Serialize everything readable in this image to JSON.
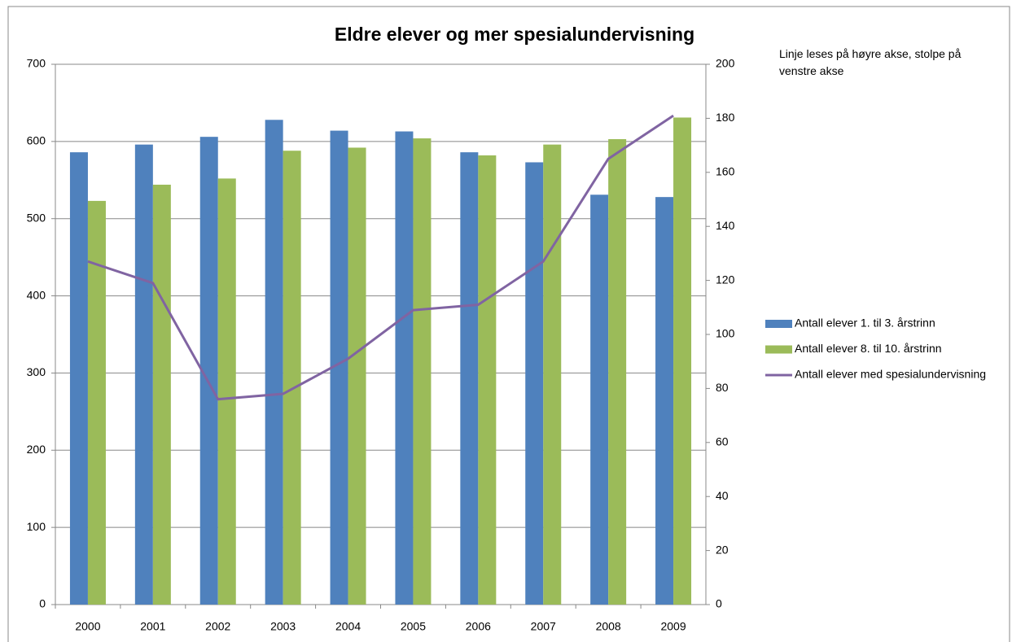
{
  "chart_data": {
    "type": "bar",
    "title": "Eldre elever og mer spesialundervisning",
    "annotation": "Linje leses på høyre akse, stolpe på venstre akse",
    "categories": [
      "2000",
      "2001",
      "2002",
      "2003",
      "2004",
      "2005",
      "2006",
      "2007",
      "2008",
      "2009"
    ],
    "series": [
      {
        "name": "Antall elever 1. til 3. årstrinn",
        "color": "#4f81bd",
        "type": "bar",
        "values": [
          586,
          596,
          606,
          628,
          614,
          613,
          586,
          573,
          531,
          528
        ]
      },
      {
        "name": "Antall elever 8. til 10. årstrinn",
        "color": "#9bbb59",
        "type": "bar",
        "values": [
          523,
          544,
          552,
          588,
          592,
          604,
          582,
          596,
          603,
          631
        ]
      },
      {
        "name": "Antall elever med spesialundervisning",
        "color": "#8064a2",
        "type": "line",
        "axis": "y2",
        "values": [
          127,
          119,
          76,
          78,
          91,
          109,
          111,
          127,
          165,
          181
        ]
      }
    ],
    "ylim": [
      0,
      700
    ],
    "yticks": [
      0,
      100,
      200,
      300,
      400,
      500,
      600,
      700
    ],
    "y2lim": [
      0,
      200
    ],
    "y2ticks": [
      0,
      20,
      40,
      60,
      80,
      100,
      120,
      140,
      160,
      180,
      200
    ],
    "grid": true,
    "legend": "right"
  }
}
